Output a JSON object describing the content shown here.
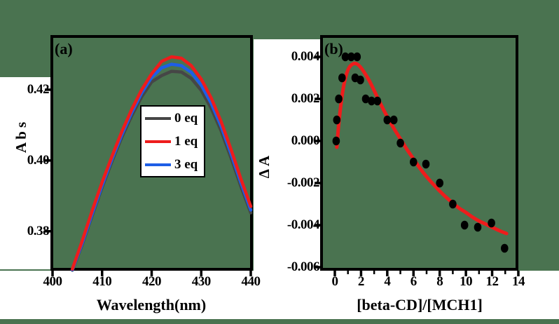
{
  "colors": {
    "background": "#4a7350",
    "axis": "#000000",
    "margin_background": "#ffffff",
    "legend_background": "#ffffff",
    "red": "#ee1c1c",
    "blue": "#1e5ee6",
    "gray": "#464646",
    "scatter": "#000000"
  },
  "chart_data": [
    {
      "panel": "a",
      "type": "line",
      "panel_label": "(a)",
      "xlabel": "Wavelength(nm)",
      "ylabel": "A b s",
      "xlim": [
        399.86,
        440.14
      ],
      "ylim": [
        0.36925,
        0.43505
      ],
      "grid": false,
      "legend_position": "center",
      "x_ticks": [
        400,
        410,
        420,
        430,
        440
      ],
      "x_minor_ticks": [],
      "y_ticks": [
        {
          "value": 0.42,
          "label": "0.42"
        },
        {
          "value": 0.4,
          "label": "0.40"
        },
        {
          "value": 0.38,
          "label": "0.38"
        }
      ],
      "x": [
        404,
        406,
        408,
        410,
        412,
        414,
        416,
        418,
        420,
        422,
        424,
        426,
        428,
        430,
        432,
        434,
        436,
        438,
        440
      ],
      "series": [
        {
          "name": "0 eq",
          "color_key": "gray",
          "z": 1,
          "values": [
            0.369,
            0.3763,
            0.3845,
            0.3924,
            0.3998,
            0.4066,
            0.4127,
            0.418,
            0.4222,
            0.424,
            0.4252,
            0.425,
            0.4232,
            0.4198,
            0.4148,
            0.4084,
            0.4008,
            0.3927,
            0.3852
          ]
        },
        {
          "name": "1 eq",
          "color_key": "red",
          "z": 3,
          "values": [
            0.3693,
            0.3773,
            0.3858,
            0.3938,
            0.4012,
            0.4082,
            0.4145,
            0.42,
            0.4245,
            0.428,
            0.4293,
            0.4289,
            0.4268,
            0.423,
            0.4177,
            0.411,
            0.4032,
            0.3948,
            0.387
          ]
        },
        {
          "name": "3 eq",
          "color_key": "blue",
          "z": 2,
          "values": [
            0.3691,
            0.3766,
            0.3849,
            0.3929,
            0.4004,
            0.4073,
            0.4136,
            0.4191,
            0.4235,
            0.4262,
            0.4272,
            0.4268,
            0.4249,
            0.4213,
            0.4162,
            0.4097,
            0.402,
            0.3937,
            0.386
          ]
        }
      ]
    },
    {
      "panel": "b",
      "type": "scatter",
      "panel_label": "(b)",
      "xlabel": "[beta-CD]/[MCH1]",
      "ylabel": "Δ A",
      "xlim": [
        -1.015,
        13.895
      ],
      "ylim": [
        -0.0061,
        0.004967
      ],
      "grid": false,
      "x_ticks": [
        0,
        2,
        4,
        6,
        8,
        10,
        12,
        14
      ],
      "x_minor_ticks": [
        1,
        3,
        5,
        7,
        9,
        11,
        13
      ],
      "y_ticks": [
        {
          "value": 0.004,
          "label": "0.004"
        },
        {
          "value": 0.002,
          "label": "0.002"
        },
        {
          "value": 0.0,
          "label": "0.000"
        },
        {
          "value": -0.002,
          "label": "-0.002"
        },
        {
          "value": -0.004,
          "label": "-0.004"
        },
        {
          "value": -0.006,
          "label": "-0.006"
        }
      ],
      "points": [
        [
          0.1,
          0.0
        ],
        [
          0.15,
          0.001
        ],
        [
          0.3,
          0.002
        ],
        [
          0.55,
          0.003
        ],
        [
          0.8,
          0.004
        ],
        [
          1.25,
          0.004
        ],
        [
          1.7,
          0.004
        ],
        [
          1.55,
          0.003
        ],
        [
          1.95,
          0.0029
        ],
        [
          2.35,
          0.002
        ],
        [
          2.8,
          0.0019
        ],
        [
          3.25,
          0.0019
        ],
        [
          4.0,
          0.001
        ],
        [
          4.5,
          0.001
        ],
        [
          5.0,
          -0.0001
        ],
        [
          6.0,
          -0.001
        ],
        [
          6.95,
          -0.0011
        ],
        [
          8.0,
          -0.002
        ],
        [
          9.0,
          -0.003
        ],
        [
          9.9,
          -0.004
        ],
        [
          10.9,
          -0.0041
        ],
        [
          11.95,
          -0.0039
        ],
        [
          12.95,
          -0.0051
        ]
      ],
      "fit_curve": {
        "color_key": "red",
        "points": [
          [
            0.15,
            -0.0003
          ],
          [
            0.3,
            0.0008
          ],
          [
            0.5,
            0.0019
          ],
          [
            0.7,
            0.0027
          ],
          [
            0.9,
            0.0032
          ],
          [
            1.1,
            0.0035
          ],
          [
            1.35,
            0.00365
          ],
          [
            1.6,
            0.00368
          ],
          [
            1.9,
            0.00355
          ],
          [
            2.2,
            0.0033
          ],
          [
            2.6,
            0.0029
          ],
          [
            3.0,
            0.0024
          ],
          [
            3.5,
            0.00175
          ],
          [
            4.0,
            0.00115
          ],
          [
            4.5,
            0.0006
          ],
          [
            5.0,
            0.0001
          ],
          [
            5.5,
            -0.0004
          ],
          [
            6.0,
            -0.00085
          ],
          [
            6.5,
            -0.0013
          ],
          [
            7.0,
            -0.0017
          ],
          [
            7.5,
            -0.00205
          ],
          [
            8.0,
            -0.00238
          ],
          [
            8.5,
            -0.00268
          ],
          [
            9.0,
            -0.00295
          ],
          [
            9.5,
            -0.0032
          ],
          [
            10.0,
            -0.0034
          ],
          [
            10.5,
            -0.00362
          ],
          [
            11.0,
            -0.0038
          ],
          [
            11.5,
            -0.00395
          ],
          [
            12.0,
            -0.0041
          ],
          [
            12.5,
            -0.00425
          ],
          [
            13.1,
            -0.0044
          ]
        ]
      }
    }
  ]
}
